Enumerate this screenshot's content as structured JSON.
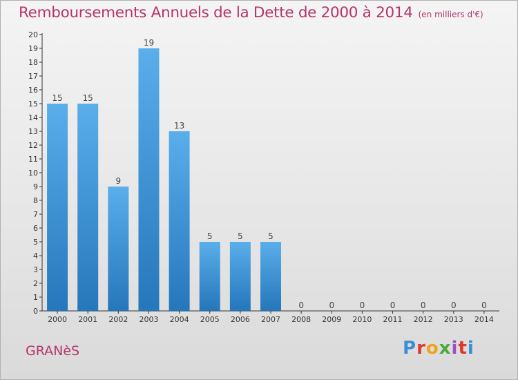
{
  "header": {
    "title": "Remboursements Annuels de la Dette de 2000 à 2014",
    "unit": "(en milliers d'€)"
  },
  "footer": {
    "commune": "GRANèS",
    "logo_text": "Proxiti"
  },
  "colors": {
    "title": "#b5336a",
    "bar_light": "#5aaeea",
    "bar_dark": "#2577bb"
  },
  "chart_data": {
    "type": "bar",
    "categories": [
      "2000",
      "2001",
      "2002",
      "2003",
      "2004",
      "2005",
      "2006",
      "2007",
      "2008",
      "2009",
      "2010",
      "2011",
      "2012",
      "2013",
      "2014"
    ],
    "values": [
      15,
      15,
      9,
      19,
      13,
      5,
      5,
      5,
      0,
      0,
      0,
      0,
      0,
      0,
      0
    ],
    "ylim": [
      0,
      20
    ],
    "yticks": [
      0,
      1,
      2,
      3,
      4,
      5,
      6,
      7,
      8,
      9,
      10,
      11,
      12,
      13,
      14,
      15,
      16,
      17,
      18,
      19,
      20
    ],
    "grid": false,
    "data_labels": true
  }
}
